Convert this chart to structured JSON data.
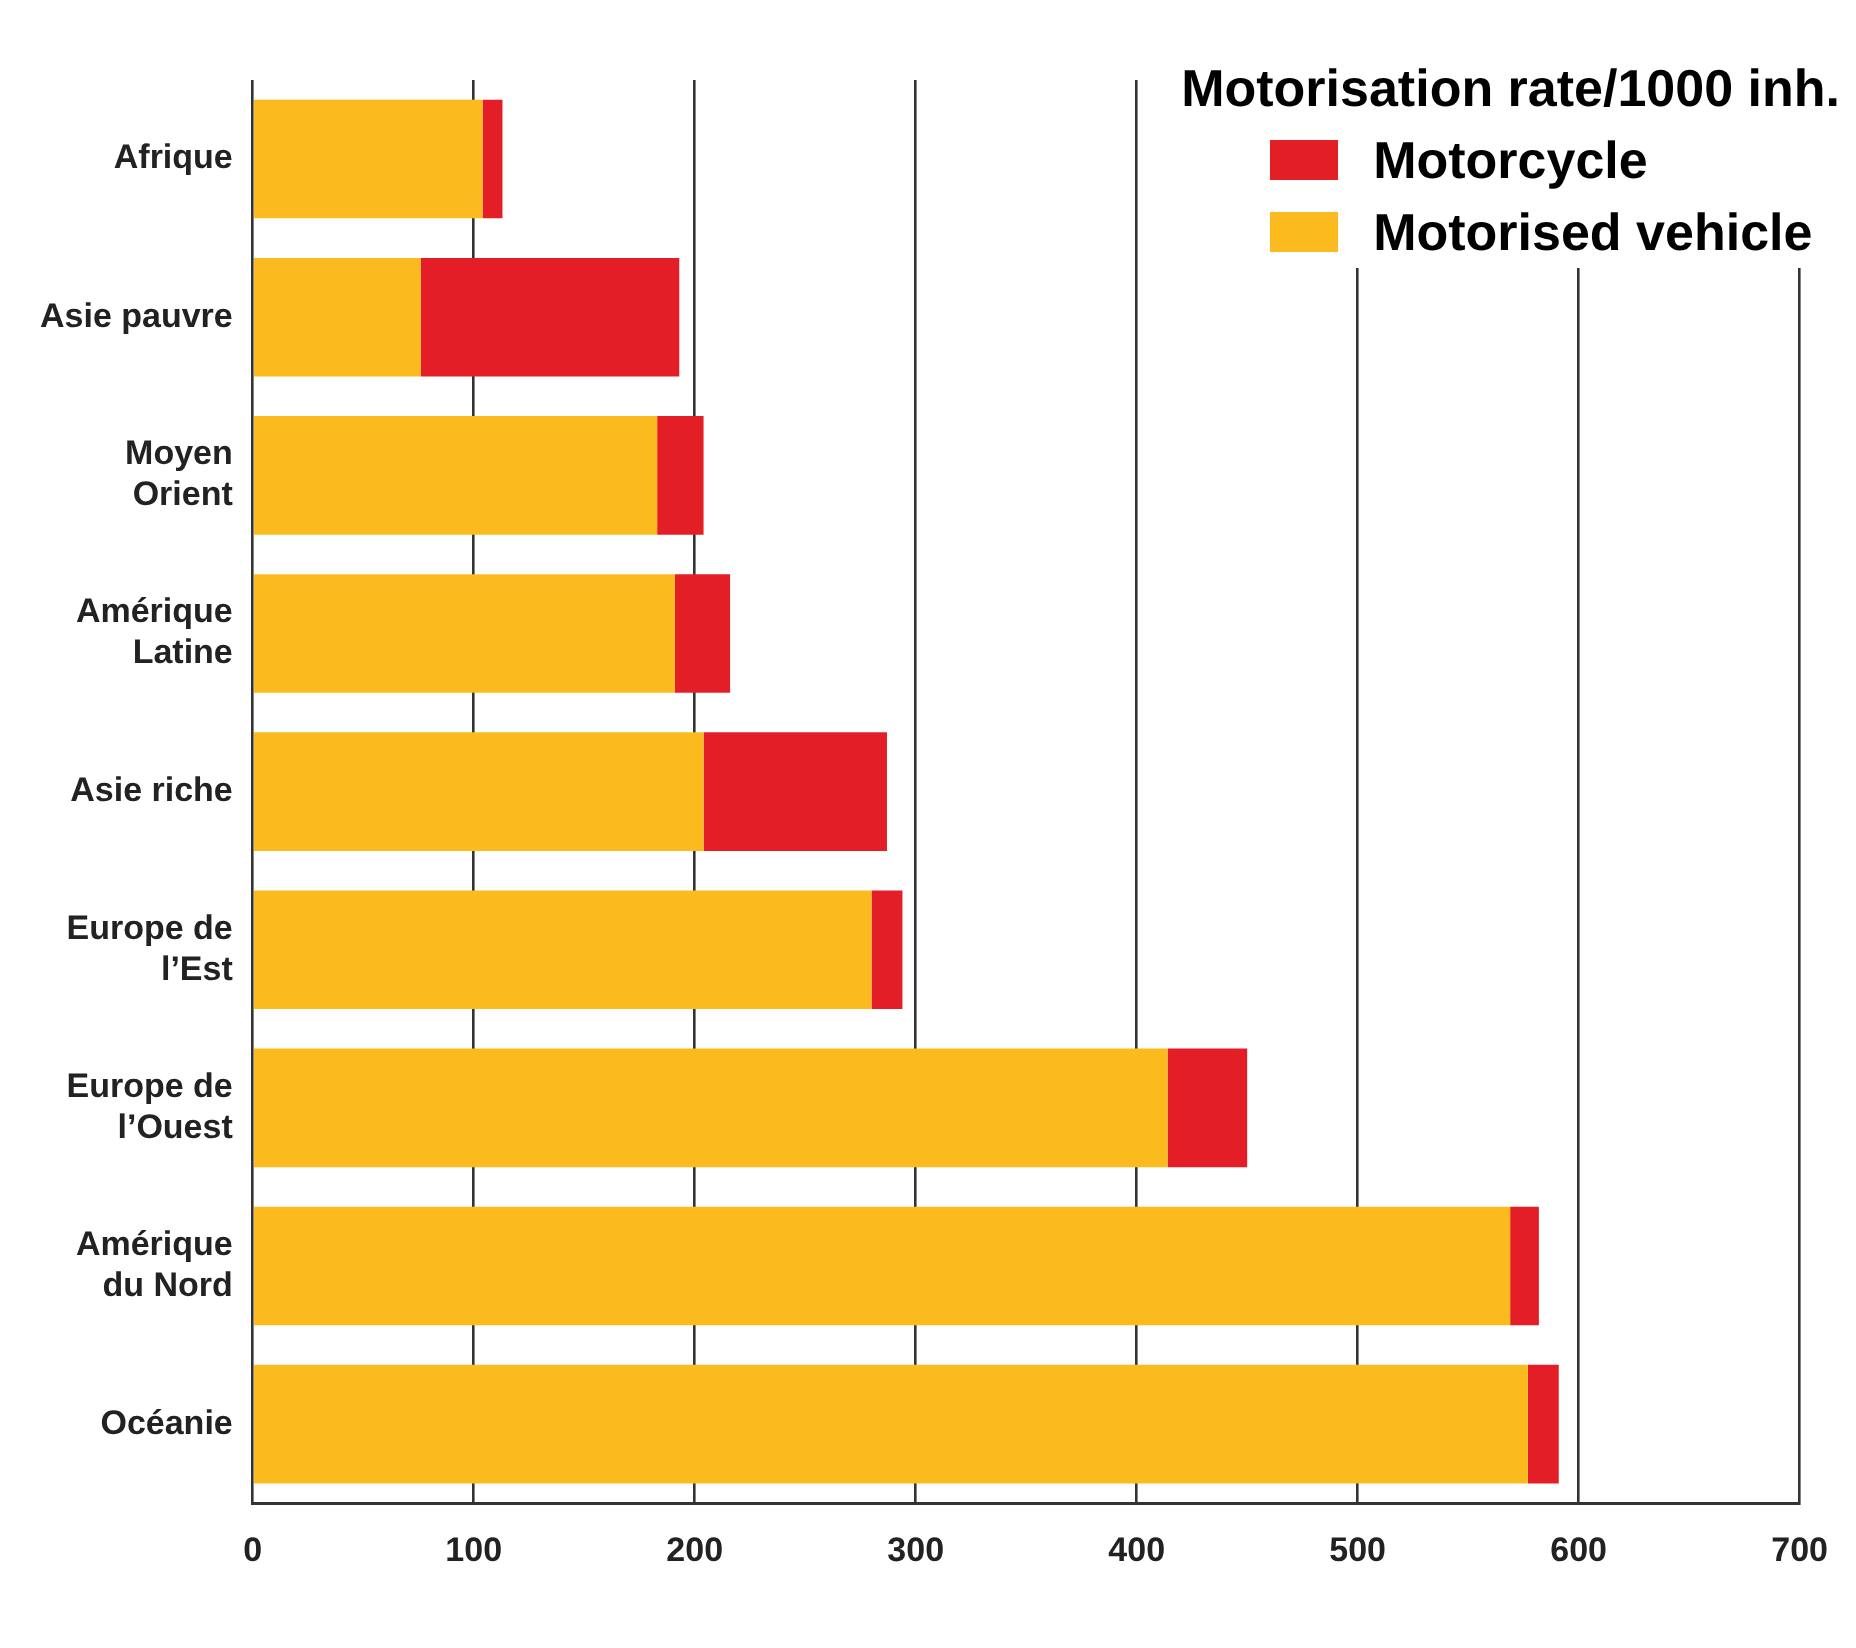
{
  "chart_data": {
    "type": "bar",
    "orientation": "horizontal",
    "stacked": true,
    "legend_title": "Motorisation rate/1000 inh.",
    "categories": [
      "Afrique",
      "Asie pauvre",
      "Moyen\nOrient",
      "Amérique\nLatine",
      "Asie riche",
      "Europe de\nl’Est",
      "Europe de\nl’Ouest",
      "Amérique\ndu Nord",
      "Océanie"
    ],
    "series": [
      {
        "name": "Motorised vehicle",
        "color": "#fbbb1e",
        "values": [
          104,
          76,
          183,
          191,
          204,
          280,
          414,
          569,
          577
        ]
      },
      {
        "name": "Motorcycle",
        "color": "#e31e26",
        "values": [
          9,
          117,
          21,
          25,
          83,
          14,
          36,
          13,
          14
        ]
      }
    ],
    "xlim": [
      0,
      700
    ],
    "xticks": [
      0,
      100,
      200,
      300,
      400,
      500,
      600,
      700
    ],
    "grid": "x",
    "legend": "top right"
  }
}
